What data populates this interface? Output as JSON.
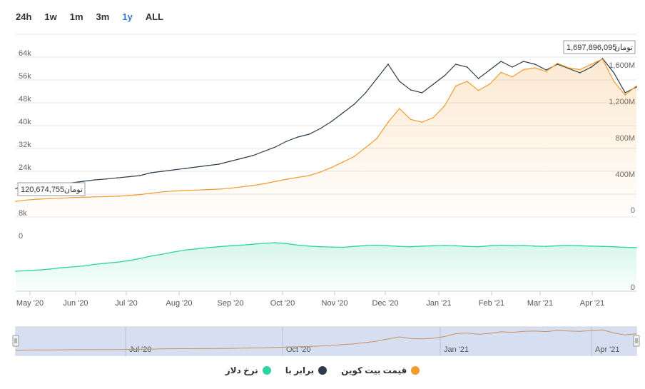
{
  "range_selector": {
    "buttons": [
      "24h",
      "1w",
      "1m",
      "3m",
      "1y",
      "ALL"
    ],
    "active": "1y"
  },
  "colors": {
    "price": "#f29c2f",
    "equal": "#2d3c4c",
    "dollar": "#2fd4a0",
    "navigator_bg": "#cfd8ee"
  },
  "chart_data": {
    "type": "line",
    "x_ticks": [
      "May '20",
      "Jun '20",
      "Jul '20",
      "Aug '20",
      "Sep '20",
      "Oct '20",
      "Nov '20",
      "Dec '20",
      "Jan '21",
      "Feb '21",
      "Mar '21",
      "Apr '21"
    ],
    "navigator_ticks": [
      "Jul '20",
      "Oct '20",
      "Jan '21",
      "Apr '21"
    ],
    "left_axis_ticks": [
      "64k",
      "56k",
      "48k",
      "40k",
      "32k",
      "24k",
      "16k",
      "8k",
      "0"
    ],
    "right_axis_ticks": [
      "1,600M",
      "1,200M",
      "800M",
      "400M",
      "0"
    ],
    "dollar_axis_ticks": [
      "0"
    ],
    "tooltip_max": {
      "value": "1,697,896,095",
      "unit": "تومان"
    },
    "tooltip_min": {
      "value": "120,674,755",
      "unit": "تومان"
    },
    "series": [
      {
        "name": "قیمت بیت کوین",
        "key": "price",
        "values": [
          125,
          140,
          150,
          155,
          160,
          168,
          170,
          175,
          178,
          182,
          190,
          200,
          215,
          230,
          240,
          245,
          250,
          255,
          260,
          270,
          285,
          300,
          320,
          345,
          370,
          390,
          410,
          450,
          500,
          560,
          620,
          720,
          820,
          1000,
          1150,
          1030,
          1000,
          1050,
          1180,
          1400,
          1450,
          1350,
          1420,
          1550,
          1500,
          1580,
          1600,
          1560,
          1650,
          1600,
          1580,
          1640,
          1697,
          1450,
          1300,
          1400
        ]
      },
      {
        "name": "برابر با",
        "key": "equal",
        "values": [
          16.5,
          17,
          17.5,
          17.8,
          18,
          18.5,
          19,
          19.5,
          19.8,
          20.2,
          20.6,
          21,
          22,
          22.5,
          23,
          23.5,
          24,
          24.5,
          25,
          26,
          27,
          28,
          29.5,
          31,
          33,
          34.5,
          35.5,
          37.5,
          40,
          43,
          46,
          50,
          55,
          60,
          54,
          51,
          50,
          53,
          56,
          60,
          59,
          55,
          58,
          61,
          59,
          61,
          60,
          58,
          60,
          58.5,
          57,
          59,
          62,
          57,
          50,
          52
        ]
      },
      {
        "name": "نرخ دلار",
        "key": "dollar",
        "values": [
          17500,
          17700,
          17900,
          18200,
          18600,
          18900,
          19200,
          19700,
          20100,
          20400,
          20900,
          21600,
          22400,
          23000,
          23700,
          24300,
          24700,
          25100,
          25400,
          25700,
          25900,
          26200,
          26500,
          26700,
          26400,
          25900,
          25600,
          25400,
          25300,
          25200,
          25500,
          25800,
          25900,
          25700,
          25500,
          25400,
          25600,
          25700,
          25800,
          25700,
          25500,
          25400,
          25700,
          25900,
          25700,
          25800,
          25600,
          25500,
          25700,
          25800,
          25700,
          25600,
          25500,
          25400,
          25200,
          25100
        ]
      }
    ],
    "grid": true
  }
}
